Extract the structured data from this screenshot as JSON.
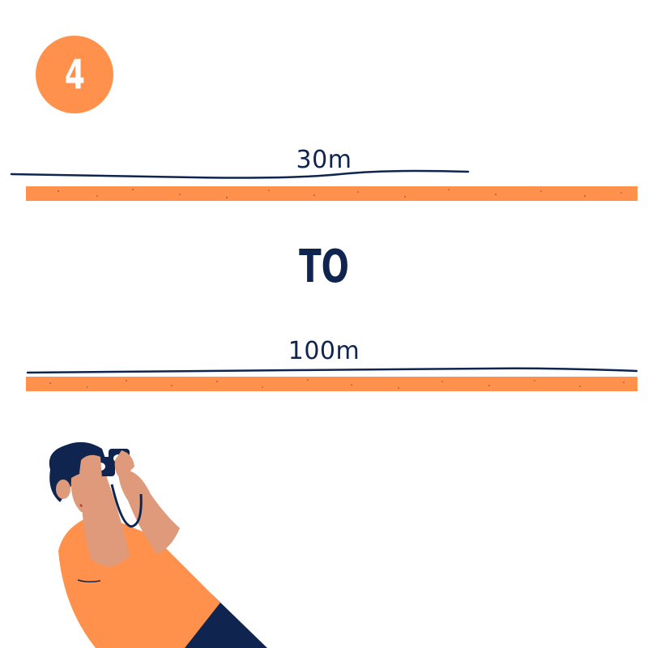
{
  "step": {
    "number": "4"
  },
  "distances": {
    "short": "30m",
    "connector": "TO",
    "long": "100m"
  },
  "figure": {
    "icon": "person-with-binoculars-icon"
  },
  "colors": {
    "orange": "#FF914D",
    "navy": "#0f2550",
    "skin": "#DE9A7A"
  }
}
